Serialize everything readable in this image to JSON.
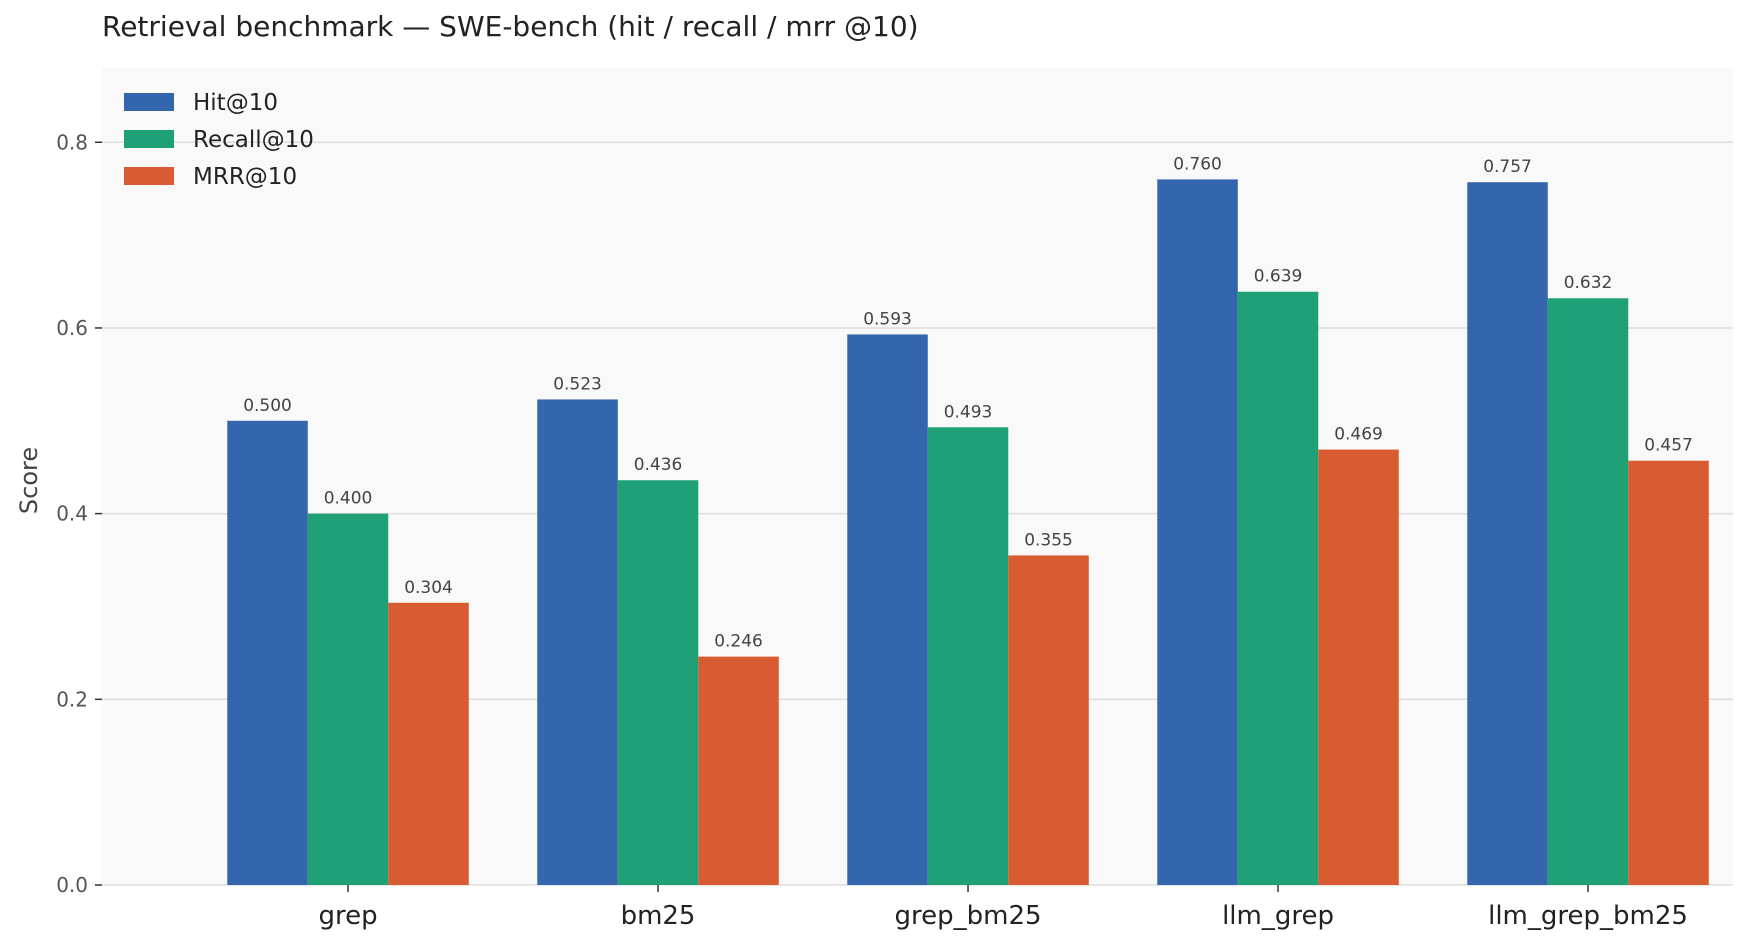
{
  "chart_data": {
    "type": "bar",
    "title": "Retrieval benchmark — SWE-bench (hit / recall / mrr @10)",
    "xlabel": "",
    "ylabel": "Score",
    "ylim": [
      0,
      0.88
    ],
    "yticks": [
      "0.0",
      "0.2",
      "0.4",
      "0.6",
      "0.8"
    ],
    "ytick_values": [
      0,
      0.2,
      0.4,
      0.6,
      0.8
    ],
    "grid": true,
    "legend_position": "top-left",
    "categories": [
      "grep",
      "bm25",
      "grep_bm25",
      "llm_grep",
      "llm_grep_bm25"
    ],
    "series": [
      {
        "name": "Hit@10",
        "color": "#3366ad",
        "values": [
          0.5,
          0.523,
          0.593,
          0.76,
          0.757
        ],
        "labels": [
          "0.500",
          "0.523",
          "0.593",
          "0.760",
          "0.757"
        ]
      },
      {
        "name": "Recall@10",
        "color": "#1fa077",
        "values": [
          0.4,
          0.436,
          0.493,
          0.639,
          0.632
        ],
        "labels": [
          "0.400",
          "0.436",
          "0.493",
          "0.639",
          "0.632"
        ]
      },
      {
        "name": "MRR@10",
        "color": "#d95b31",
        "values": [
          0.304,
          0.246,
          0.355,
          0.469,
          0.457
        ],
        "labels": [
          "0.304",
          "0.246",
          "0.355",
          "0.469",
          "0.457"
        ]
      }
    ],
    "plot_background": "#f9f9f9",
    "grid_color": "#dddddd"
  }
}
